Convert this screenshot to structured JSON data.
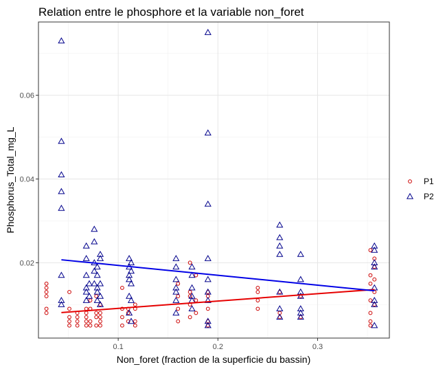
{
  "chart_data": {
    "type": "scatter",
    "title": "Relation entre le phosphore et la variable non_foret",
    "xlabel": "Non_foret (fraction de la superficie du bassin)",
    "ylabel": "Phosphorus_Total_mg_L",
    "xlim": [
      0.02,
      0.372
    ],
    "ylim": [
      0.002,
      0.0775
    ],
    "x_ticks": [
      {
        "value": 0.1,
        "label": "0.1"
      },
      {
        "value": 0.2,
        "label": "0.2"
      },
      {
        "value": 0.3,
        "label": "0.3"
      }
    ],
    "y_ticks": [
      {
        "value": 0.02,
        "label": "0.02"
      },
      {
        "value": 0.04,
        "label": "0.04"
      },
      {
        "value": 0.06,
        "label": "0.06"
      }
    ],
    "grid": true,
    "legend": {
      "position": "right",
      "entries": [
        {
          "label": "P1",
          "marker": "circle",
          "color": "#cc0000"
        },
        {
          "label": "P2",
          "marker": "triangle",
          "color": "#00008b"
        }
      ]
    },
    "series": [
      {
        "name": "P1",
        "marker": "circle",
        "color": "#cc0000",
        "points": [
          [
            0.028,
            0.008
          ],
          [
            0.028,
            0.009
          ],
          [
            0.028,
            0.012
          ],
          [
            0.028,
            0.013
          ],
          [
            0.028,
            0.014
          ],
          [
            0.028,
            0.015
          ],
          [
            0.051,
            0.005
          ],
          [
            0.051,
            0.006
          ],
          [
            0.051,
            0.007
          ],
          [
            0.051,
            0.009
          ],
          [
            0.051,
            0.013
          ],
          [
            0.059,
            0.005
          ],
          [
            0.059,
            0.006
          ],
          [
            0.059,
            0.007
          ],
          [
            0.059,
            0.008
          ],
          [
            0.068,
            0.005
          ],
          [
            0.068,
            0.006
          ],
          [
            0.068,
            0.007
          ],
          [
            0.068,
            0.008
          ],
          [
            0.068,
            0.009
          ],
          [
            0.072,
            0.005
          ],
          [
            0.072,
            0.006
          ],
          [
            0.072,
            0.009
          ],
          [
            0.072,
            0.011
          ],
          [
            0.078,
            0.005
          ],
          [
            0.078,
            0.007
          ],
          [
            0.078,
            0.008
          ],
          [
            0.078,
            0.012
          ],
          [
            0.082,
            0.005
          ],
          [
            0.082,
            0.006
          ],
          [
            0.082,
            0.007
          ],
          [
            0.082,
            0.008
          ],
          [
            0.082,
            0.01
          ],
          [
            0.104,
            0.005
          ],
          [
            0.104,
            0.007
          ],
          [
            0.104,
            0.009
          ],
          [
            0.104,
            0.014
          ],
          [
            0.11,
            0.006
          ],
          [
            0.11,
            0.008
          ],
          [
            0.11,
            0.009
          ],
          [
            0.117,
            0.005
          ],
          [
            0.117,
            0.006
          ],
          [
            0.117,
            0.009
          ],
          [
            0.117,
            0.01
          ],
          [
            0.16,
            0.006
          ],
          [
            0.16,
            0.009
          ],
          [
            0.16,
            0.012
          ],
          [
            0.16,
            0.015
          ],
          [
            0.172,
            0.007
          ],
          [
            0.172,
            0.01
          ],
          [
            0.172,
            0.012
          ],
          [
            0.172,
            0.013
          ],
          [
            0.172,
            0.02
          ],
          [
            0.178,
            0.008
          ],
          [
            0.178,
            0.011
          ],
          [
            0.178,
            0.017
          ],
          [
            0.19,
            0.005
          ],
          [
            0.19,
            0.006
          ],
          [
            0.19,
            0.009
          ],
          [
            0.19,
            0.012
          ],
          [
            0.19,
            0.013
          ],
          [
            0.24,
            0.009
          ],
          [
            0.24,
            0.011
          ],
          [
            0.24,
            0.013
          ],
          [
            0.24,
            0.014
          ],
          [
            0.262,
            0.007
          ],
          [
            0.262,
            0.008
          ],
          [
            0.262,
            0.013
          ],
          [
            0.283,
            0.007
          ],
          [
            0.283,
            0.012
          ],
          [
            0.353,
            0.005
          ],
          [
            0.353,
            0.006
          ],
          [
            0.353,
            0.008
          ],
          [
            0.353,
            0.011
          ],
          [
            0.353,
            0.015
          ],
          [
            0.353,
            0.017
          ],
          [
            0.353,
            0.023
          ],
          [
            0.357,
            0.01
          ],
          [
            0.357,
            0.013
          ],
          [
            0.357,
            0.016
          ],
          [
            0.357,
            0.019
          ],
          [
            0.357,
            0.021
          ]
        ]
      },
      {
        "name": "P2",
        "marker": "triangle",
        "color": "#00008b",
        "points": [
          [
            0.043,
            0.073
          ],
          [
            0.043,
            0.049
          ],
          [
            0.043,
            0.041
          ],
          [
            0.043,
            0.037
          ],
          [
            0.043,
            0.033
          ],
          [
            0.043,
            0.017
          ],
          [
            0.043,
            0.011
          ],
          [
            0.043,
            0.01
          ],
          [
            0.068,
            0.024
          ],
          [
            0.068,
            0.021
          ],
          [
            0.068,
            0.017
          ],
          [
            0.068,
            0.014
          ],
          [
            0.068,
            0.013
          ],
          [
            0.068,
            0.011
          ],
          [
            0.071,
            0.015
          ],
          [
            0.071,
            0.012
          ],
          [
            0.076,
            0.028
          ],
          [
            0.076,
            0.025
          ],
          [
            0.076,
            0.02
          ],
          [
            0.076,
            0.018
          ],
          [
            0.076,
            0.015
          ],
          [
            0.079,
            0.019
          ],
          [
            0.079,
            0.017
          ],
          [
            0.079,
            0.014
          ],
          [
            0.079,
            0.013
          ],
          [
            0.079,
            0.011
          ],
          [
            0.082,
            0.022
          ],
          [
            0.082,
            0.021
          ],
          [
            0.082,
            0.015
          ],
          [
            0.082,
            0.012
          ],
          [
            0.082,
            0.01
          ],
          [
            0.111,
            0.021
          ],
          [
            0.111,
            0.019
          ],
          [
            0.111,
            0.017
          ],
          [
            0.111,
            0.016
          ],
          [
            0.111,
            0.012
          ],
          [
            0.111,
            0.008
          ],
          [
            0.113,
            0.02
          ],
          [
            0.113,
            0.018
          ],
          [
            0.113,
            0.015
          ],
          [
            0.113,
            0.011
          ],
          [
            0.113,
            0.006
          ],
          [
            0.158,
            0.021
          ],
          [
            0.158,
            0.019
          ],
          [
            0.158,
            0.016
          ],
          [
            0.158,
            0.014
          ],
          [
            0.158,
            0.013
          ],
          [
            0.158,
            0.011
          ],
          [
            0.158,
            0.008
          ],
          [
            0.174,
            0.019
          ],
          [
            0.174,
            0.017
          ],
          [
            0.174,
            0.014
          ],
          [
            0.174,
            0.012
          ],
          [
            0.174,
            0.011
          ],
          [
            0.174,
            0.009
          ],
          [
            0.19,
            0.075
          ],
          [
            0.19,
            0.051
          ],
          [
            0.19,
            0.034
          ],
          [
            0.19,
            0.021
          ],
          [
            0.19,
            0.016
          ],
          [
            0.19,
            0.013
          ],
          [
            0.19,
            0.011
          ],
          [
            0.19,
            0.006
          ],
          [
            0.19,
            0.005
          ],
          [
            0.262,
            0.029
          ],
          [
            0.262,
            0.026
          ],
          [
            0.262,
            0.024
          ],
          [
            0.262,
            0.022
          ],
          [
            0.262,
            0.013
          ],
          [
            0.262,
            0.009
          ],
          [
            0.262,
            0.007
          ],
          [
            0.283,
            0.022
          ],
          [
            0.283,
            0.016
          ],
          [
            0.283,
            0.013
          ],
          [
            0.283,
            0.012
          ],
          [
            0.283,
            0.009
          ],
          [
            0.283,
            0.008
          ],
          [
            0.283,
            0.007
          ],
          [
            0.357,
            0.024
          ],
          [
            0.357,
            0.023
          ],
          [
            0.357,
            0.02
          ],
          [
            0.357,
            0.019
          ],
          [
            0.357,
            0.014
          ],
          [
            0.357,
            0.011
          ],
          [
            0.357,
            0.01
          ],
          [
            0.357,
            0.005
          ]
        ]
      }
    ],
    "trend_lines": [
      {
        "series": "P1",
        "color": "#e60000",
        "from": [
          0.043,
          0.0081
        ],
        "to": [
          0.357,
          0.0136
        ]
      },
      {
        "series": "P2",
        "color": "#0000e6",
        "from": [
          0.043,
          0.0207
        ],
        "to": [
          0.357,
          0.0133
        ]
      }
    ]
  }
}
